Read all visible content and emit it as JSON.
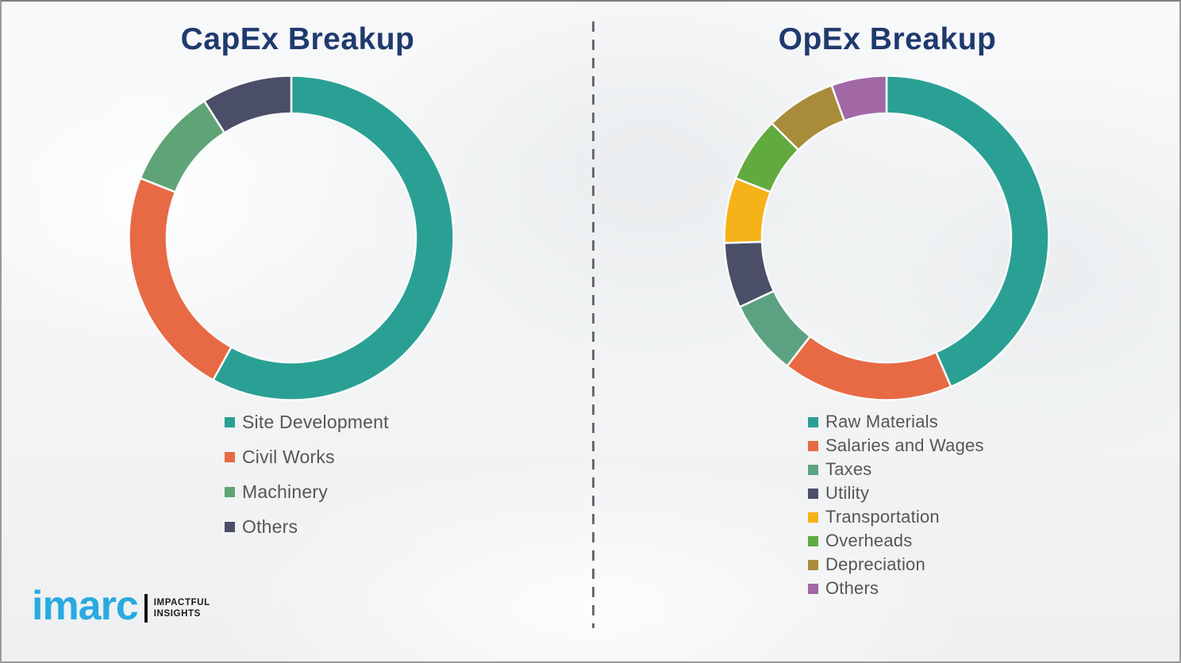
{
  "left_panel": {
    "title": "CapEx Breakup"
  },
  "right_panel": {
    "title": "OpEx Breakup"
  },
  "colors": {
    "title_text": "#1f3a6e",
    "legend_text": "#565656",
    "divider": "#676b70",
    "background": "#f2f4f5",
    "segment_gap": "#fafbfb"
  },
  "logo": {
    "brand": "imarc",
    "tagline_line1": "IMPACTFUL",
    "tagline_line2": "INSIGHTS",
    "brand_color": "#29aae1"
  },
  "chart_data": [
    {
      "type": "pie",
      "subtype": "donut",
      "title": "CapEx Breakup",
      "legend_position": "below-left",
      "categories": [
        "Site Development",
        "Civil Works",
        "Machinery",
        "Others"
      ],
      "values": [
        58,
        23,
        10,
        9
      ],
      "unit": "percent",
      "start_angle_deg": 0,
      "direction": "clockwise",
      "colors": [
        "#2aa094",
        "#e76a45",
        "#5fa477",
        "#4a4e67"
      ]
    },
    {
      "type": "pie",
      "subtype": "donut",
      "title": "OpEx Breakup",
      "legend_position": "below-left",
      "categories": [
        "Raw Materials",
        "Salaries and Wages",
        "Taxes",
        "Utility",
        "Transportation",
        "Overheads",
        "Depreciation",
        "Others"
      ],
      "values": [
        43.5,
        17,
        7.5,
        6.5,
        6.5,
        6.5,
        7,
        5.5
      ],
      "unit": "percent",
      "start_angle_deg": 0,
      "direction": "clockwise",
      "colors": [
        "#2aa094",
        "#e76a45",
        "#5ca181",
        "#4a4e67",
        "#f6b219",
        "#61ab3e",
        "#a98c3a",
        "#a168a5"
      ]
    }
  ]
}
